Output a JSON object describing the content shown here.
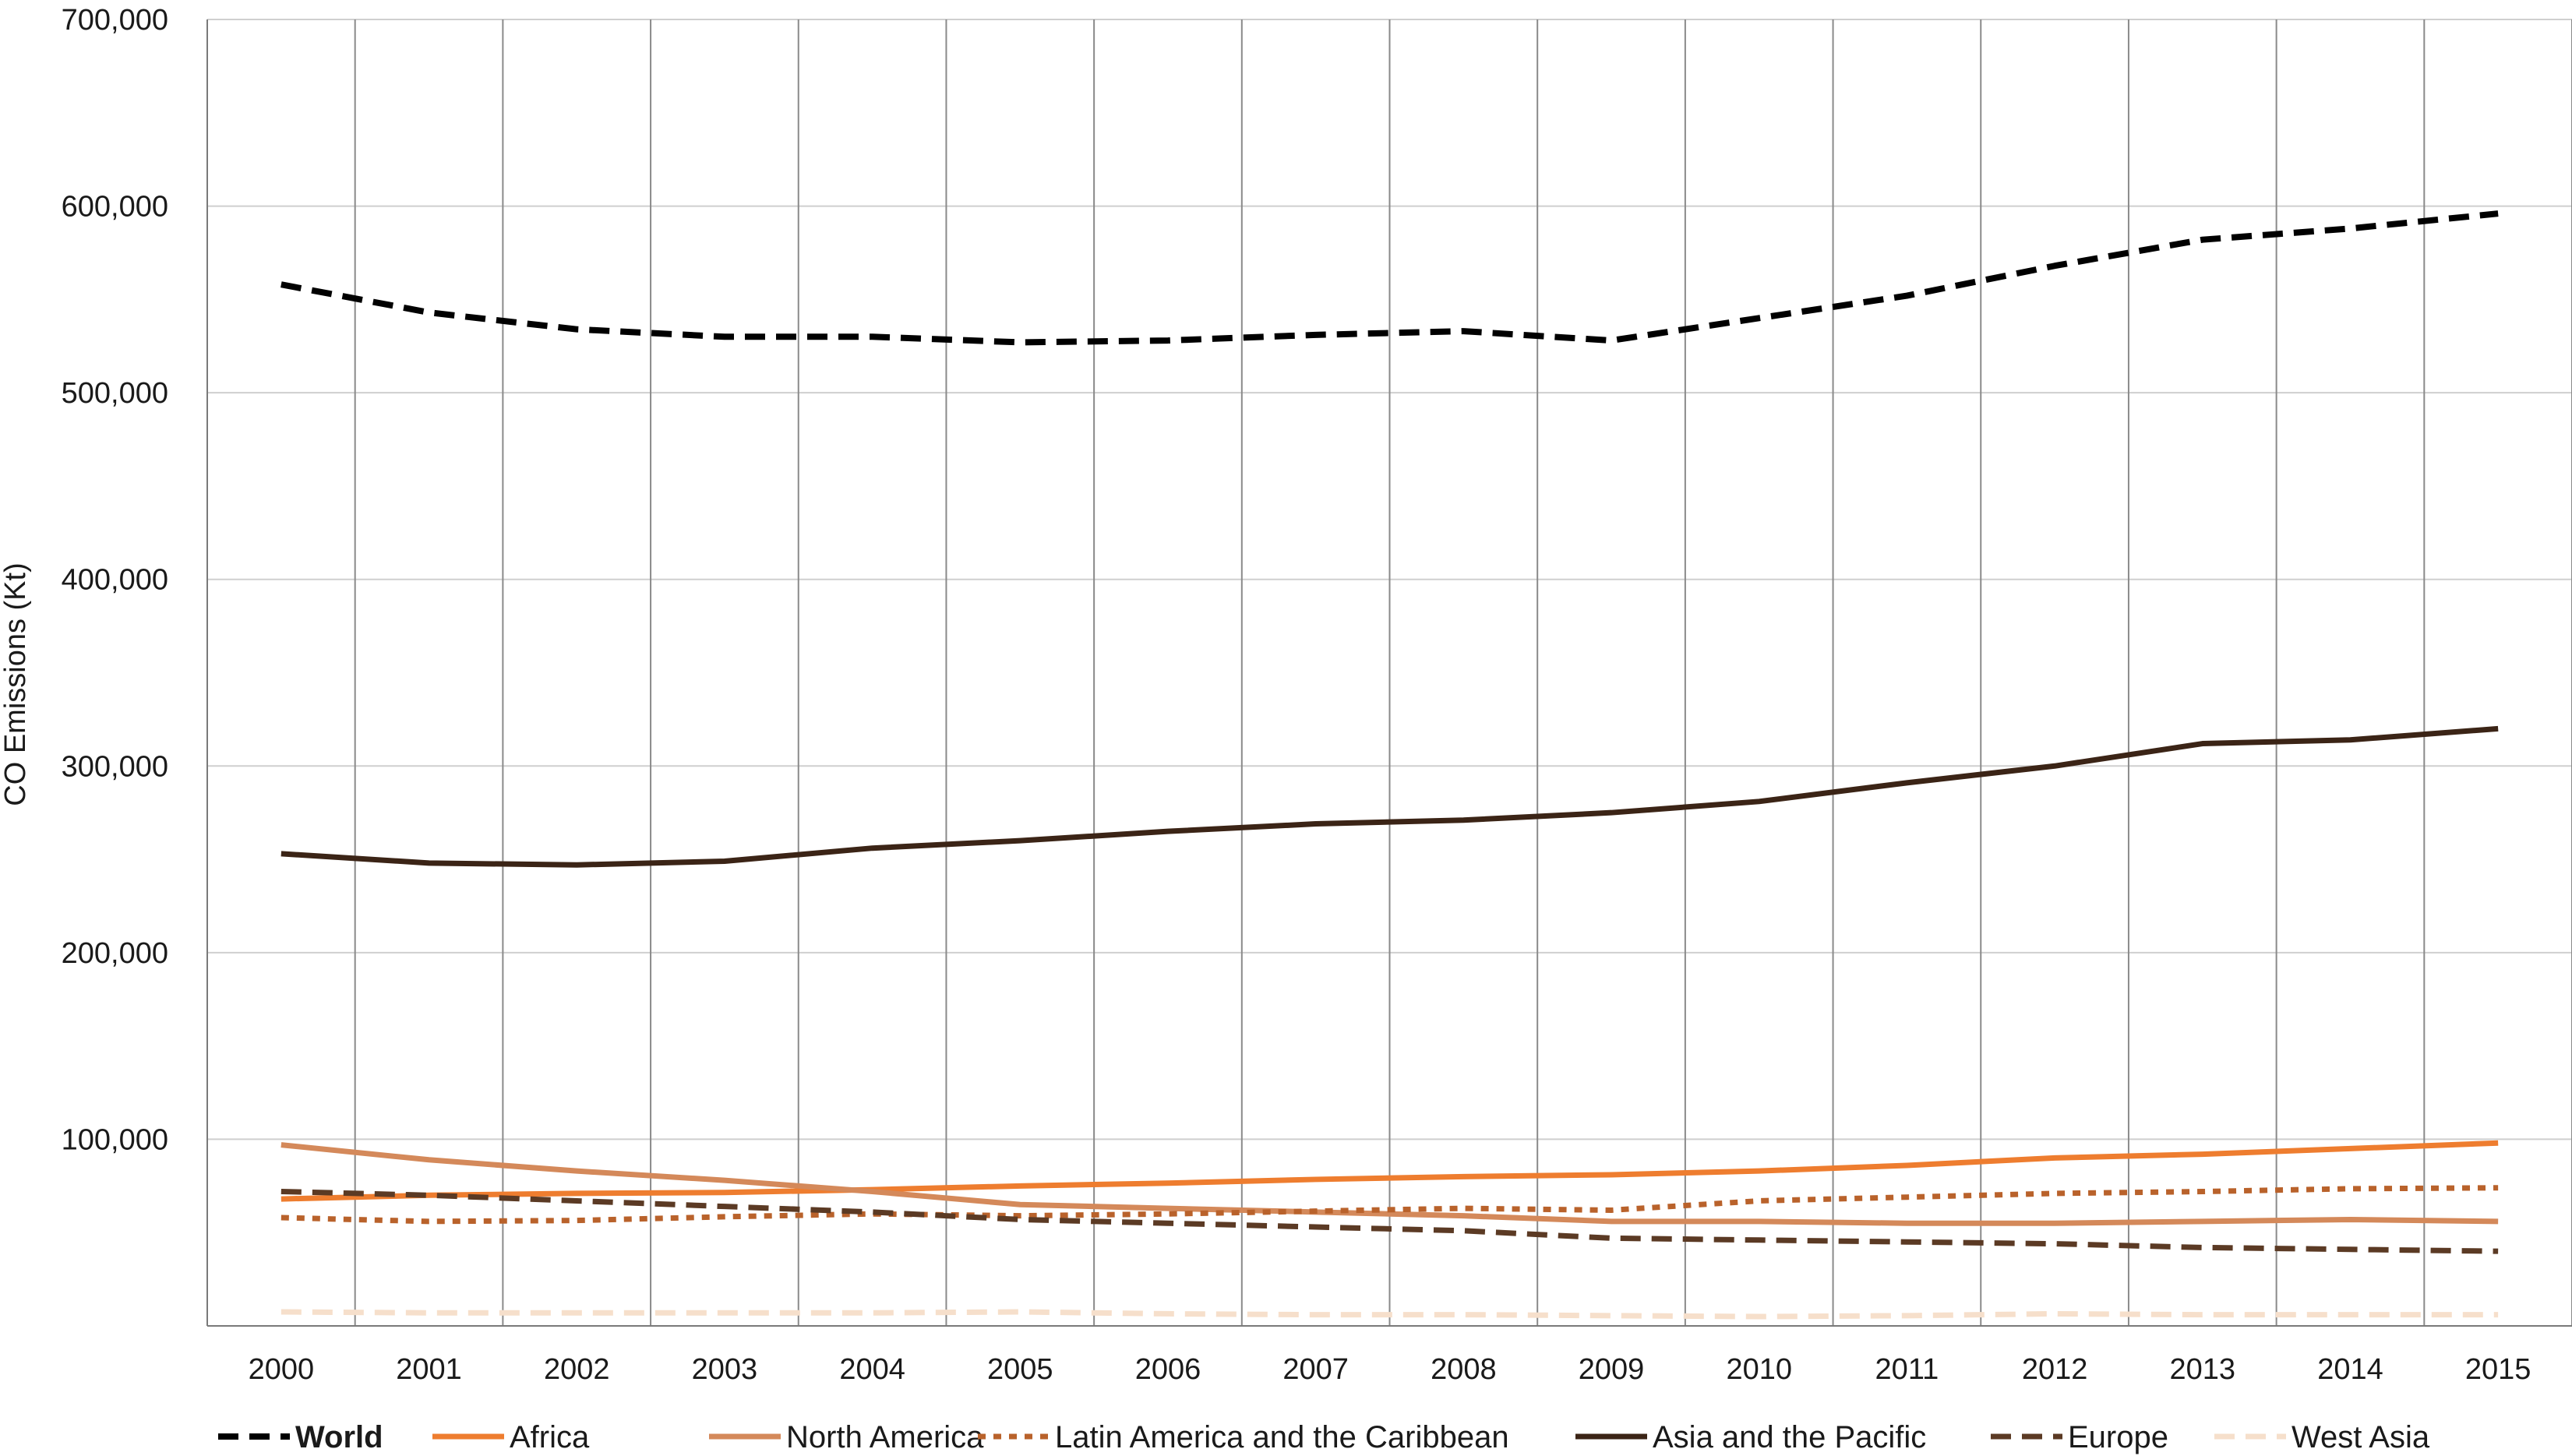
{
  "chart_data": {
    "type": "line",
    "title": "",
    "xlabel": "",
    "ylabel": "CO Emissions (Kt)",
    "x": [
      "2000",
      "2001",
      "2002",
      "2003",
      "2004",
      "2005",
      "2006",
      "2007",
      "2008",
      "2009",
      "2010",
      "2011",
      "2012",
      "2013",
      "2014",
      "2015"
    ],
    "ylim": [
      0,
      700000
    ],
    "yticks": [
      100000,
      200000,
      300000,
      400000,
      500000,
      600000,
      700000
    ],
    "ytick_labels": [
      "100,000",
      "200,000",
      "300,000",
      "400,000",
      "500,000",
      "600,000",
      "700,000"
    ],
    "grid": "both",
    "legend_position": "bottom",
    "series": [
      {
        "name": "World",
        "color": "#000000",
        "dash": "dash",
        "bold": true,
        "values": [
          558000,
          543000,
          534000,
          530000,
          530000,
          527000,
          528000,
          531000,
          533000,
          528000,
          540000,
          552000,
          568000,
          582000,
          588000,
          596000
        ]
      },
      {
        "name": "Africa",
        "color": "#ee7d2f",
        "dash": "solid",
        "bold": false,
        "values": [
          68000,
          70000,
          71000,
          71500,
          73000,
          75000,
          76500,
          78500,
          80000,
          81000,
          83000,
          86000,
          90000,
          92000,
          95000,
          98000
        ]
      },
      {
        "name": "North America",
        "color": "#d4895a",
        "dash": "solid",
        "bold": false,
        "values": [
          97000,
          89000,
          83000,
          78000,
          72000,
          65000,
          63000,
          61000,
          59000,
          56000,
          56000,
          55000,
          55000,
          56000,
          57000,
          56000
        ]
      },
      {
        "name": "Latin America and the Caribbean",
        "color": "#b9622b",
        "dash": "dot",
        "bold": false,
        "values": [
          58000,
          56000,
          56500,
          58500,
          60000,
          59000,
          60000,
          61500,
          63000,
          62000,
          67000,
          69000,
          71000,
          72000,
          73500,
          74000
        ]
      },
      {
        "name": "Asia and the Pacific",
        "color": "#3b2416",
        "dash": "solid",
        "bold": false,
        "values": [
          253000,
          248000,
          247000,
          249000,
          256000,
          260000,
          265000,
          269000,
          271000,
          275000,
          281000,
          291000,
          300000,
          312000,
          314000,
          320000
        ]
      },
      {
        "name": "Europe",
        "color": "#5b3a24",
        "dash": "dash",
        "bold": false,
        "values": [
          72000,
          70000,
          67000,
          64000,
          61000,
          57000,
          55000,
          53000,
          51000,
          47000,
          46000,
          45000,
          44000,
          42000,
          41000,
          40000
        ]
      },
      {
        "name": "West Asia",
        "color": "#f6dfcb",
        "dash": "dash",
        "bold": false,
        "values": [
          7500,
          7000,
          7000,
          7000,
          7000,
          7500,
          6500,
          6000,
          6000,
          5500,
          5000,
          5500,
          6500,
          6000,
          6000,
          6000
        ]
      }
    ]
  }
}
